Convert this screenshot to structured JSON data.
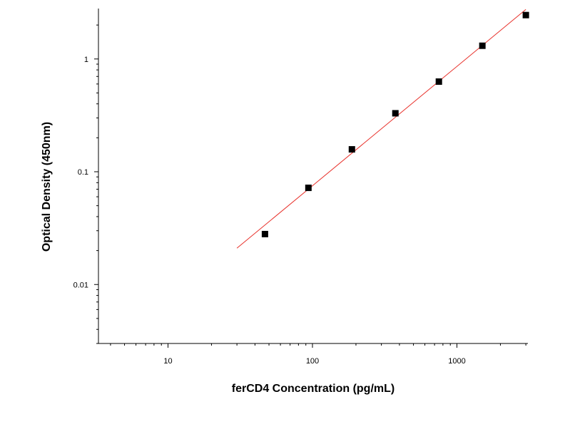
{
  "chart_data": {
    "type": "scatter",
    "title": "",
    "xlabel": "ferCD4 Concentration (pg/mL)",
    "ylabel": "Optical Density (450nm)",
    "x_scale": "log",
    "y_scale": "log",
    "xlim": [
      3.3,
      3100
    ],
    "ylim": [
      0.003,
      2.8
    ],
    "x_tick_values": [
      10,
      100,
      1000
    ],
    "x_tick_labels": [
      "10",
      "100",
      "1000"
    ],
    "y_tick_values": [
      1,
      0.1,
      0.01
    ],
    "y_tick_labels": [
      "1",
      "0.1",
      "0.01"
    ],
    "grid": false,
    "series": [
      {
        "kind": "points",
        "color": "#000000",
        "x": [
          46.9,
          93.75,
          187.5,
          375,
          750,
          1500,
          3000
        ],
        "y": [
          0.028,
          0.072,
          0.158,
          0.33,
          0.63,
          1.31,
          2.45
        ]
      },
      {
        "kind": "fit-line",
        "color": "#e8302a",
        "x": [
          30,
          3000
        ],
        "y": [
          0.021,
          2.75
        ]
      }
    ]
  }
}
